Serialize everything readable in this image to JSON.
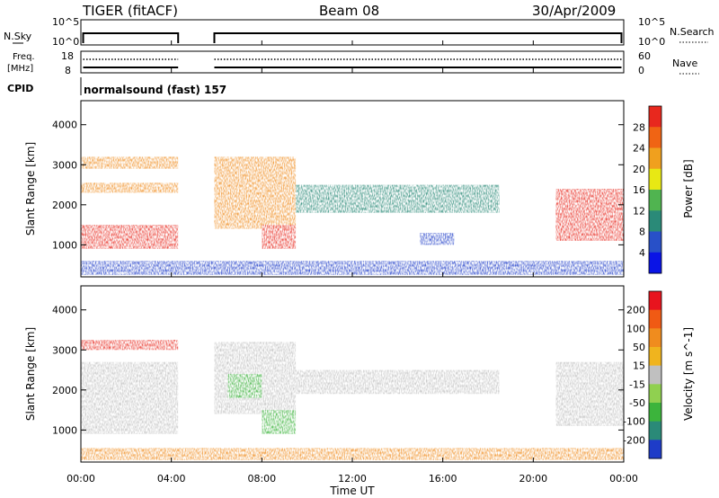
{
  "header": {
    "title": "TIGER (fitACF)",
    "beam": "Beam 08",
    "date": "30/Apr/2009"
  },
  "noise_panel": {
    "left_label": "N.Sky",
    "right_label": "N.Search",
    "left_ticks": [
      "10^5",
      "10^0"
    ],
    "right_ticks": [
      "10^5",
      "10^0"
    ]
  },
  "freq_panel": {
    "left_label_1": "Freq.",
    "left_label_2": "[MHz]",
    "right_label": "Nave",
    "left_ticks": [
      "18",
      "8"
    ],
    "right_ticks": [
      "60",
      "0"
    ]
  },
  "cpid": {
    "label": "CPID",
    "value": "normalsound (fast) 157"
  },
  "x_axis": {
    "label": "Time UT",
    "ticks": [
      "00:00",
      "04:00",
      "08:00",
      "12:00",
      "16:00",
      "20:00",
      "00:00"
    ],
    "range_hours": [
      0,
      24
    ],
    "data_gap_hours": [
      4.3,
      5.9
    ]
  },
  "colors": {
    "red": "#e8281e",
    "orange": "#f08c1e",
    "yellow": "#e8e814",
    "green": "#3cb43c",
    "teal": "#2a8a78",
    "blue": "#1e3cc8",
    "gray": "#c0c0c0"
  },
  "chart_data": [
    {
      "type": "heatmap",
      "name": "power",
      "ylabel": "Slant Range [km]",
      "yticks": [
        "1000",
        "2000",
        "3000",
        "4000"
      ],
      "ylim": [
        200,
        4600
      ],
      "colorbar_label": "Power [dB]",
      "colorbar_ticks": [
        "4",
        "8",
        "12",
        "16",
        "20",
        "24",
        "28"
      ],
      "colorbar_colors": [
        "#0a14e6",
        "#2850c8",
        "#2a8a78",
        "#50b450",
        "#e8e814",
        "#f0a01e",
        "#f06414",
        "#e8281e"
      ],
      "regions": [
        {
          "t": [
            0,
            4.3
          ],
          "r": [
            900,
            1500
          ],
          "level": "red"
        },
        {
          "t": [
            0,
            4.3
          ],
          "r": [
            2300,
            2550
          ],
          "level": "orange"
        },
        {
          "t": [
            0,
            4.3
          ],
          "r": [
            2900,
            3200
          ],
          "level": "orange"
        },
        {
          "t": [
            5.9,
            9.5
          ],
          "r": [
            1400,
            3200
          ],
          "level": "orange"
        },
        {
          "t": [
            8.0,
            9.5
          ],
          "r": [
            900,
            1500
          ],
          "level": "red"
        },
        {
          "t": [
            9.5,
            18.5
          ],
          "r": [
            1800,
            2500
          ],
          "level": "teal"
        },
        {
          "t": [
            15.0,
            16.5
          ],
          "r": [
            1000,
            1300
          ],
          "level": "blue"
        },
        {
          "t": [
            21.0,
            24.0
          ],
          "r": [
            1100,
            2400
          ],
          "level": "red"
        },
        {
          "t": [
            0,
            24
          ],
          "r": [
            250,
            600
          ],
          "level": "blue"
        }
      ]
    },
    {
      "type": "heatmap",
      "name": "velocity",
      "ylabel": "Slant Range [km]",
      "yticks": [
        "1000",
        "2000",
        "3000",
        "4000"
      ],
      "ylim": [
        200,
        4600
      ],
      "colorbar_label": "Velocity [m s^-1]",
      "colorbar_ticks": [
        "200",
        "100",
        "50",
        "15",
        "-15",
        "-50",
        "-100",
        "-200"
      ],
      "colorbar_colors": [
        "#1e3cc8",
        "#2a8a78",
        "#3cb43c",
        "#90d050",
        "#c0c0c0",
        "#f0b41e",
        "#f08c1e",
        "#f05a14",
        "#e8141e"
      ],
      "regions": [
        {
          "t": [
            0,
            4.3
          ],
          "r": [
            900,
            2700
          ],
          "level": "gray"
        },
        {
          "t": [
            0,
            4.3
          ],
          "r": [
            3000,
            3250
          ],
          "level": "red"
        },
        {
          "t": [
            5.9,
            9.5
          ],
          "r": [
            1400,
            3200
          ],
          "level": "gray"
        },
        {
          "t": [
            6.5,
            8.0
          ],
          "r": [
            1800,
            2400
          ],
          "level": "green"
        },
        {
          "t": [
            8.0,
            9.5
          ],
          "r": [
            900,
            1500
          ],
          "level": "green"
        },
        {
          "t": [
            9.5,
            18.5
          ],
          "r": [
            1900,
            2500
          ],
          "level": "gray"
        },
        {
          "t": [
            21.0,
            24.0
          ],
          "r": [
            1100,
            2700
          ],
          "level": "gray"
        },
        {
          "t": [
            0,
            24
          ],
          "r": [
            250,
            550
          ],
          "level": "orange"
        }
      ]
    }
  ]
}
